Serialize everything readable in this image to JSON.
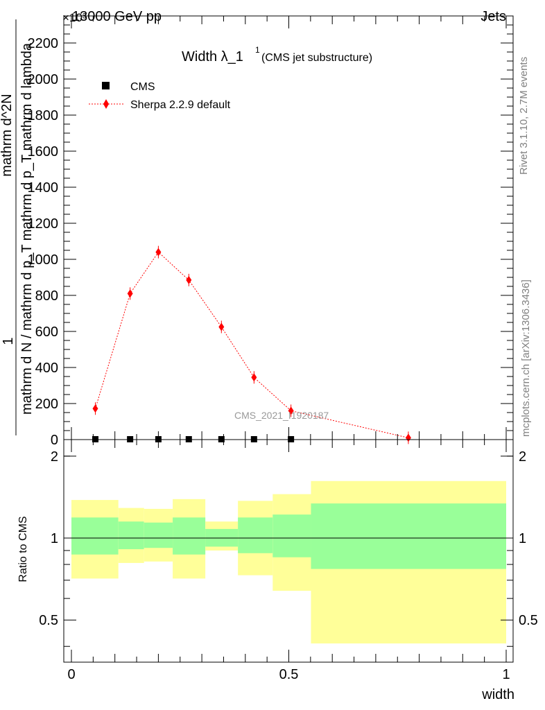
{
  "header": {
    "left": "13000 GeV pp",
    "right": "Jets",
    "exponent": "×10³"
  },
  "side_text": {
    "rivet": "Rivet 3.1.10,  2.7M events",
    "mcplots": "mcplots.cern.ch [arXiv:1306.3436]"
  },
  "chart_data": [
    {
      "type": "scatter",
      "title": "Width λ_1",
      "title_superscript": "1",
      "subtitle": "(CMS jet substructure)",
      "ylabel_numerator": "1",
      "ylabel_denominator": "mathrm d N / mathrm d p_T mathrm d p_T mathrm d lambda",
      "ylabel_numerator2": "mathrm d^2N",
      "watermark": "CMS_2021_I1920187",
      "ylim": [
        0,
        2350
      ],
      "y_scale_note": "values ×10^3",
      "yticks": [
        0,
        200,
        400,
        600,
        800,
        1000,
        1200,
        1400,
        1600,
        1800,
        2000,
        2200
      ],
      "xlim": [
        0,
        1
      ],
      "legend_placement": "top-left",
      "series": [
        {
          "name": "CMS",
          "color": "#000000",
          "marker": "square",
          "x": [
            0.055,
            0.135,
            0.2,
            0.27,
            0.345,
            0.42,
            0.505
          ],
          "y": [
            2,
            2,
            2,
            2,
            2,
            2,
            2
          ]
        },
        {
          "name": "Sherpa 2.2.9 default",
          "color": "#ff0000",
          "marker": "diamond",
          "line": "dotted",
          "x": [
            0.055,
            0.135,
            0.2,
            0.27,
            0.345,
            0.42,
            0.505,
            0.775
          ],
          "y": [
            172,
            810,
            1040,
            885,
            625,
            345,
            160,
            10
          ]
        }
      ]
    },
    {
      "type": "area",
      "ylabel": "Ratio to CMS",
      "xlabel": "width",
      "ylim": [
        0.35,
        2.3
      ],
      "xlim": [
        0,
        1
      ],
      "yticks": [
        0.5,
        1,
        2
      ],
      "xticks": [
        0,
        0.5,
        1
      ],
      "bins": [
        {
          "lo": 0.0,
          "hi": 0.108,
          "g_lo": 0.87,
          "g_hi": 1.19,
          "y_lo": 0.71,
          "y_hi": 1.38
        },
        {
          "lo": 0.108,
          "hi": 0.167,
          "g_lo": 0.91,
          "g_hi": 1.15,
          "y_lo": 0.81,
          "y_hi": 1.29
        },
        {
          "lo": 0.167,
          "hi": 0.233,
          "g_lo": 0.92,
          "g_hi": 1.14,
          "y_lo": 0.82,
          "y_hi": 1.28
        },
        {
          "lo": 0.233,
          "hi": 0.308,
          "g_lo": 0.87,
          "g_hi": 1.19,
          "y_lo": 0.71,
          "y_hi": 1.39
        },
        {
          "lo": 0.308,
          "hi": 0.383,
          "g_lo": 0.93,
          "g_hi": 1.08,
          "y_lo": 0.9,
          "y_hi": 1.15
        },
        {
          "lo": 0.383,
          "hi": 0.463,
          "g_lo": 0.88,
          "g_hi": 1.19,
          "y_lo": 0.73,
          "y_hi": 1.37
        },
        {
          "lo": 0.463,
          "hi": 0.551,
          "g_lo": 0.85,
          "g_hi": 1.22,
          "y_lo": 0.64,
          "y_hi": 1.45
        },
        {
          "lo": 0.551,
          "hi": 1.0,
          "g_lo": 0.77,
          "g_hi": 1.34,
          "y_lo": 0.41,
          "y_hi": 1.62
        }
      ],
      "band_colors": {
        "green": "#99ff99",
        "yellow": "#ffff99"
      }
    }
  ]
}
